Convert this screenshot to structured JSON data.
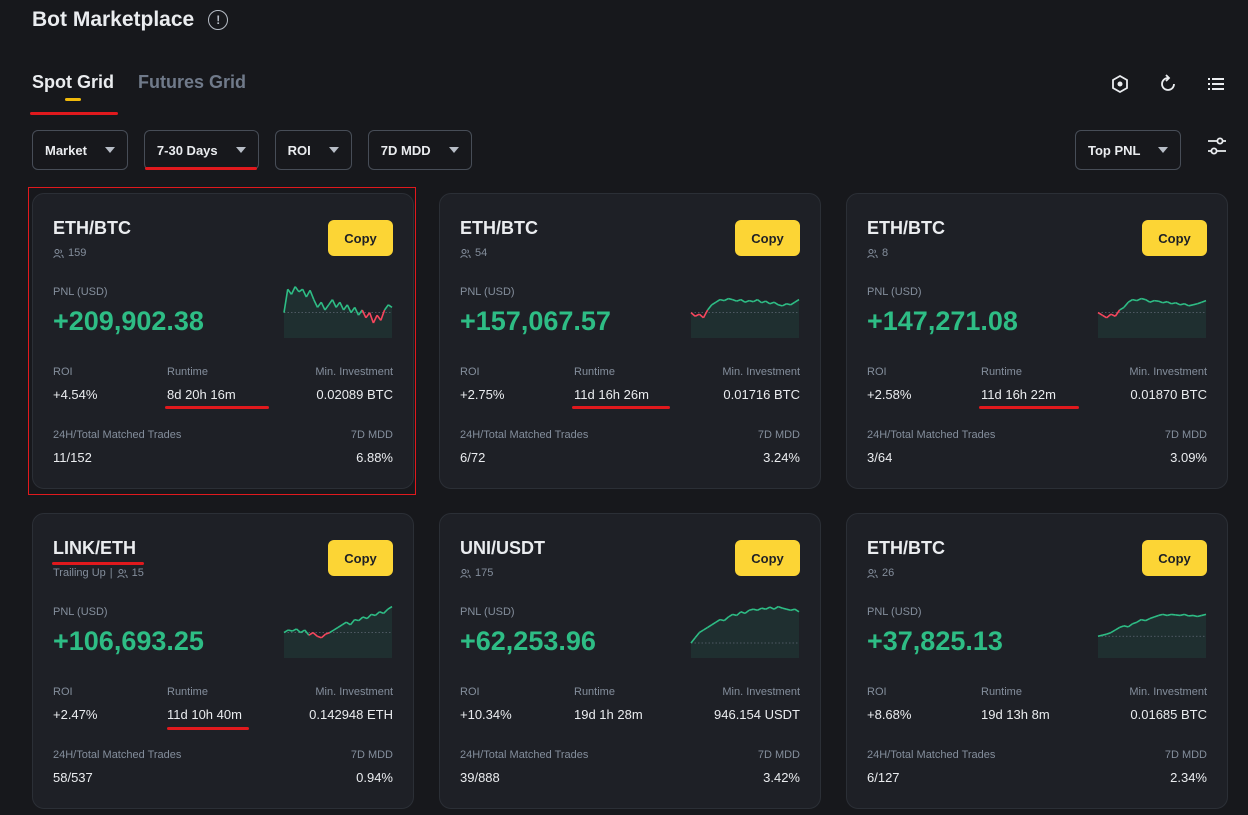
{
  "page": {
    "title": "Bot Marketplace"
  },
  "tabs": [
    {
      "label": "Spot Grid",
      "active": true
    },
    {
      "label": "Futures Grid",
      "active": false
    }
  ],
  "toolbar_icons": [
    "hexagon-icon",
    "refresh-icon",
    "list-icon"
  ],
  "filters": {
    "market": "Market",
    "days": "7-30 Days",
    "roi": "ROI",
    "mdd": "7D MDD",
    "sort": "Top PNL"
  },
  "labels": {
    "copy": "Copy",
    "pnl": "PNL (USD)",
    "roi": "ROI",
    "runtime": "Runtime",
    "min_investment": "Min. Investment",
    "matched_trades": "24H/Total Matched Trades",
    "mdd": "7D MDD"
  },
  "colors": {
    "accent": "#fcd535",
    "profit": "#2ebd85",
    "loss": "#f6465d",
    "annotation": "#e0191d"
  },
  "cards": [
    {
      "pair": "ETH/BTC",
      "tag": "",
      "copiers": "159",
      "pnl": "+209,902.38",
      "roi": "+4.54%",
      "runtime": "8d 20h 16m",
      "min_investment": "0.02089 BTC",
      "trades": "11/152",
      "mdd": "6.88%",
      "trend": [
        0.55,
        0.1,
        0.2,
        0.05,
        0.15,
        0.1,
        0.25,
        0.12,
        0.3,
        0.45,
        0.35,
        0.5,
        0.4,
        0.3,
        0.45,
        0.35,
        0.5,
        0.4,
        0.55,
        0.45,
        0.6,
        0.5,
        0.65,
        0.55,
        0.75,
        0.6,
        0.7,
        0.5,
        0.4,
        0.45
      ]
    },
    {
      "pair": "ETH/BTC",
      "tag": "",
      "copiers": "54",
      "pnl": "+157,067.57",
      "roi": "+2.75%",
      "runtime": "11d 16h 26m",
      "min_investment": "0.01716 BTC",
      "trades": "6/72",
      "mdd": "3.24%",
      "trend": [
        0.55,
        0.62,
        0.58,
        0.65,
        0.5,
        0.4,
        0.35,
        0.3,
        0.32,
        0.28,
        0.3,
        0.33,
        0.3,
        0.35,
        0.32,
        0.34,
        0.3,
        0.36,
        0.33,
        0.38,
        0.35,
        0.4,
        0.42,
        0.38,
        0.4,
        0.35,
        0.3
      ]
    },
    {
      "pair": "ETH/BTC",
      "tag": "",
      "copiers": "8",
      "pnl": "+147,271.08",
      "roi": "+2.58%",
      "runtime": "11d 16h 22m",
      "min_investment": "0.01870 BTC",
      "trades": "3/64",
      "mdd": "3.09%",
      "trend": [
        0.55,
        0.6,
        0.65,
        0.58,
        0.62,
        0.5,
        0.45,
        0.35,
        0.3,
        0.32,
        0.28,
        0.3,
        0.35,
        0.32,
        0.33,
        0.36,
        0.34,
        0.38,
        0.36,
        0.4,
        0.38,
        0.42,
        0.4,
        0.38,
        0.35,
        0.32
      ]
    },
    {
      "pair": "LINK/ETH",
      "tag": "Trailing Up",
      "copiers": "15",
      "pnl": "+106,693.25",
      "roi": "+2.47%",
      "runtime": "11d 10h 40m",
      "min_investment": "0.142948 ETH",
      "trades": "58/537",
      "mdd": "0.94%",
      "trend": [
        0.55,
        0.5,
        0.52,
        0.48,
        0.55,
        0.5,
        0.6,
        0.55,
        0.62,
        0.65,
        0.58,
        0.55,
        0.5,
        0.45,
        0.4,
        0.35,
        0.4,
        0.3,
        0.32,
        0.25,
        0.28,
        0.2,
        0.22,
        0.15,
        0.18,
        0.1,
        0.05
      ]
    },
    {
      "pair": "UNI/USDT",
      "tag": "",
      "copiers": "175",
      "pnl": "+62,253.96",
      "roi": "+10.34%",
      "runtime": "19d 1h 28m",
      "min_investment": "946.154 USDT",
      "trades": "39/888",
      "mdd": "3.42%",
      "trend": [
        0.75,
        0.65,
        0.55,
        0.5,
        0.45,
        0.4,
        0.35,
        0.3,
        0.32,
        0.25,
        0.2,
        0.22,
        0.15,
        0.18,
        0.12,
        0.1,
        0.12,
        0.08,
        0.1,
        0.06,
        0.1,
        0.05,
        0.08,
        0.1,
        0.12,
        0.1,
        0.15
      ]
    },
    {
      "pair": "ETH/BTC",
      "tag": "",
      "copiers": "26",
      "pnl": "+37,825.13",
      "roi": "+8.68%",
      "runtime": "19d 13h 8m",
      "min_investment": "0.01685 BTC",
      "trades": "6/127",
      "mdd": "2.34%",
      "trend": [
        0.62,
        0.6,
        0.58,
        0.55,
        0.5,
        0.45,
        0.42,
        0.44,
        0.38,
        0.35,
        0.3,
        0.32,
        0.28,
        0.25,
        0.22,
        0.2,
        0.22,
        0.2,
        0.21,
        0.22,
        0.2,
        0.23,
        0.22,
        0.24,
        0.22,
        0.2
      ]
    }
  ]
}
